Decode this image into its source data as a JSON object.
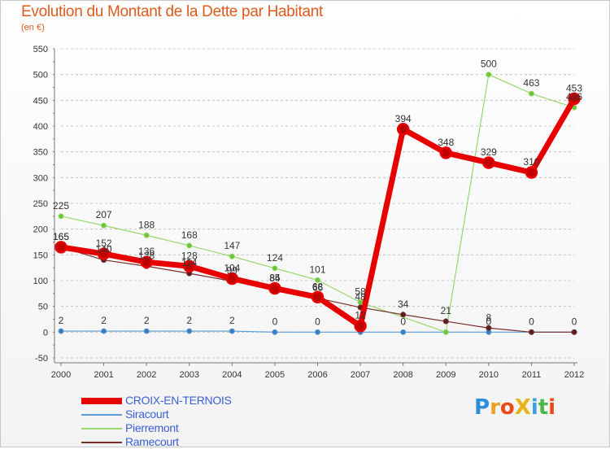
{
  "title": "Evolution du Montant de la Dette par Habitant",
  "subtitle": "(en €)",
  "logo": {
    "text": "ProXiti",
    "letters": [
      {
        "ch": "P",
        "color": "#2a8fd8"
      },
      {
        "ch": "r",
        "color": "#f0a020"
      },
      {
        "ch": "o",
        "color": "#e84a1a"
      },
      {
        "ch": "X",
        "color": "#e8b41a"
      },
      {
        "ch": "i",
        "color": "#3aa0e0"
      },
      {
        "ch": "t",
        "color": "#4cb84c"
      },
      {
        "ch": "i",
        "color": "#e84a1a"
      }
    ]
  },
  "colors": {
    "grid": "#b8b8b8",
    "axis": "#777777",
    "tick_text": "#333333",
    "value_text": "#333333"
  },
  "chart_data": {
    "type": "line",
    "x": [
      "2000",
      "2001",
      "2002",
      "2003",
      "2004",
      "2005",
      "2006",
      "2007",
      "2008",
      "2009",
      "2010",
      "2011",
      "2012"
    ],
    "ylim": [
      -50,
      550
    ],
    "yticks": [
      -50,
      0,
      50,
      100,
      150,
      200,
      250,
      300,
      350,
      400,
      450,
      500,
      550
    ],
    "grid": "dashed horizontal",
    "legend_position": "bottom-left",
    "series": [
      {
        "name": "Siracourt",
        "color": "#5b9bd5",
        "marker_color": "#3a7cc0",
        "width": 1.2,
        "values": [
          2,
          2,
          2,
          2,
          2,
          0,
          0,
          0,
          0,
          0,
          0,
          0,
          0
        ],
        "labels": [
          "2",
          "2",
          "2",
          "2",
          "2",
          "0",
          "0",
          "",
          "0",
          "",
          "0",
          "",
          ""
        ]
      },
      {
        "name": "Pierremont",
        "color": "#96d86a",
        "marker_color": "#6cc43a",
        "width": 1.2,
        "values": [
          225,
          207,
          188,
          168,
          147,
          124,
          101,
          58,
          null,
          0,
          500,
          463,
          436
        ],
        "labels": [
          "225",
          "207",
          "188",
          "168",
          "147",
          "124",
          "101",
          "58",
          "",
          "",
          "500",
          "463",
          "436"
        ]
      },
      {
        "name": "Ramecourt",
        "color": "#7a2e2e",
        "marker_color": "#5a1f1f",
        "width": 1.2,
        "values": [
          165,
          140,
          128,
          114,
          99,
          84,
          66,
          48,
          34,
          21,
          8,
          0,
          0
        ],
        "labels": [
          "165",
          "140",
          "128",
          "114",
          "99",
          "84",
          "66",
          "48",
          "34",
          "21",
          "8",
          "0",
          "0"
        ]
      },
      {
        "name": "CROIX-EN-TERNOIS",
        "color": "#e80000",
        "marker_color": "#c00000",
        "width": 7,
        "values": [
          165,
          152,
          136,
          128,
          104,
          85,
          68,
          12,
          394,
          348,
          329,
          310,
          453
        ],
        "labels": [
          "165",
          "152",
          "136",
          "128",
          "104",
          "85",
          "68",
          "12",
          "394",
          "348",
          "329",
          "310",
          "453"
        ]
      }
    ],
    "legend_order": [
      "CROIX-EN-TERNOIS",
      "Siracourt",
      "Pierremont",
      "Ramecourt"
    ]
  }
}
